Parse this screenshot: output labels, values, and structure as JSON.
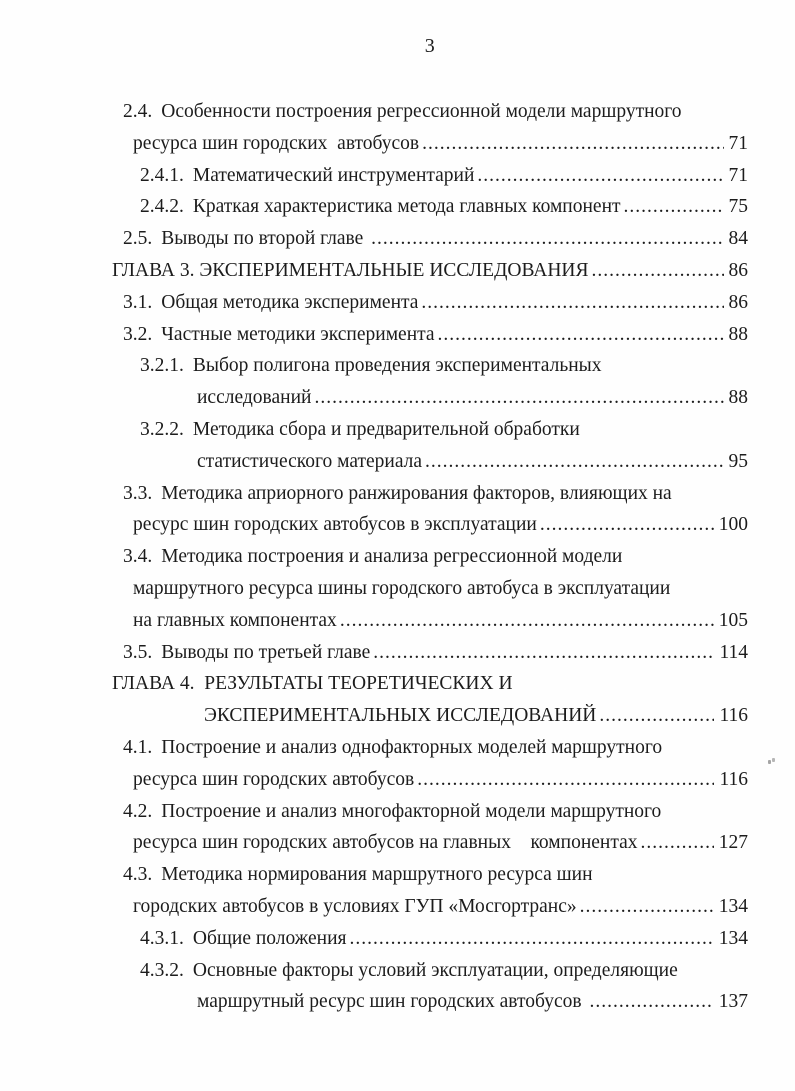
{
  "page": {
    "number": "3",
    "background_color": "#fefefe",
    "text_color": "#1c1c1c"
  },
  "toc": {
    "entries": [
      {
        "indent": "l1",
        "num": "2.4.",
        "text": "Особенности построения регрессионной модели маршрутного"
      },
      {
        "indent": "l1c",
        "text": "ресурса шин городских  автобусов",
        "leader": true,
        "page": "71"
      },
      {
        "indent": "l2",
        "num": "2.4.1.",
        "text": "Математический инструментарий",
        "leader": true,
        "page": "71"
      },
      {
        "indent": "l2",
        "num": "2.4.2.",
        "text": "Краткая характеристика метода главных компонент",
        "leader": true,
        "page": "75"
      },
      {
        "indent": "l1",
        "num": "2.5.",
        "text": "Выводы по второй главе ",
        "leader": true,
        "page": "84"
      },
      {
        "indent": "ch",
        "text": "ГЛАВА 3. ЭКСПЕРИМЕНТАЛЬНЫЕ ИССЛЕДОВАНИЯ",
        "leader": true,
        "page": "86"
      },
      {
        "indent": "l1",
        "num": "3.1.",
        "text": "Общая методика эксперимента",
        "leader": true,
        "page": "86"
      },
      {
        "indent": "l1",
        "num": "3.2.",
        "text": "Частные методики эксперимента",
        "leader": true,
        "page": "88"
      },
      {
        "indent": "l2",
        "num": "3.2.1.",
        "text": "Выбор полигона проведения экспериментальных"
      },
      {
        "indent": "l2c",
        "text": "исследований",
        "leader": true,
        "page": "88"
      },
      {
        "indent": "l2",
        "num": "3.2.2.",
        "text": "Методика сбора и предварительной обработки"
      },
      {
        "indent": "l2c",
        "text": "статистического материала",
        "leader": true,
        "page": "95"
      },
      {
        "indent": "l1",
        "num": "3.3.",
        "text": "Методика априорного ранжирования факторов, влияющих на"
      },
      {
        "indent": "l1c",
        "text": "ресурс шин городских автобусов в эксплуатации",
        "leader": true,
        "page": "100"
      },
      {
        "indent": "l1",
        "num": "3.4.",
        "text": "Методика построения и анализа регрессионной модели"
      },
      {
        "indent": "l1c",
        "text": "маршрутного ресурса шины городского автобуса в эксплуатации"
      },
      {
        "indent": "l1c",
        "text": "на главных компонентах",
        "leader": true,
        "page": "105"
      },
      {
        "indent": "l1",
        "num": "3.5.",
        "text": "Выводы по третьей главе",
        "leader": true,
        "page": "114"
      },
      {
        "indent": "ch",
        "text": "ГЛАВА 4.  РЕЗУЛЬТАТЫ ТЕОРЕТИЧЕСКИХ И"
      },
      {
        "indent": "chc",
        "text": "ЭКСПЕРИМЕНТАЛЬНЫХ ИССЛЕДОВАНИЙ",
        "leader": true,
        "page": "116"
      },
      {
        "indent": "l1",
        "num": "4.1.",
        "text": "Построение и анализ однофакторных моделей маршрутного"
      },
      {
        "indent": "l1c",
        "text": "ресурса шин городских автобусов",
        "leader": true,
        "page": "116"
      },
      {
        "indent": "l1",
        "num": "4.2.",
        "text": "Построение и анализ многофакторной модели маршрутного"
      },
      {
        "indent": "l1c",
        "text": "ресурса шин городских автобусов на главных    компонентах",
        "leader": true,
        "page": "127"
      },
      {
        "indent": "l1",
        "num": "4.3.",
        "text": "Методика нормирования маршрутного ресурса шин"
      },
      {
        "indent": "l1c",
        "text": "городских автобусов в условиях ГУП «Мосгортранс»",
        "leader": true,
        "page": "134"
      },
      {
        "indent": "l2",
        "num": "4.3.1.",
        "text": "Общие положения",
        "leader": true,
        "page": "134"
      },
      {
        "indent": "l2",
        "num": "4.3.2.",
        "text": "Основные факторы условий эксплуатации, определяющие"
      },
      {
        "indent": "l2c",
        "text": "маршрутный ресурс шин городских автобусов ",
        "leader": true,
        "page": "137"
      }
    ]
  }
}
